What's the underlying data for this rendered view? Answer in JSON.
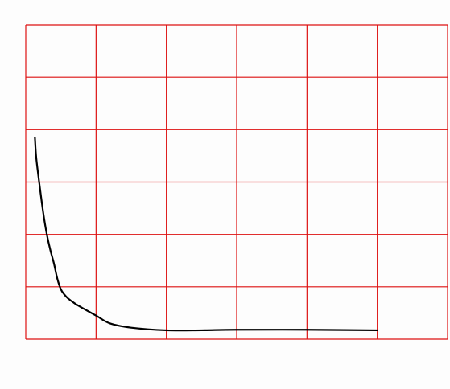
{
  "chart_data": {
    "type": "line",
    "title": "",
    "xlabel": "",
    "ylabel": "",
    "xlim": [
      0,
      6
    ],
    "ylim": [
      0,
      6
    ],
    "grid": true,
    "grid_color": "#dd1111",
    "line_color": "#000000",
    "background_color": "#fdfdfd",
    "series": [
      {
        "x": [
          0.13,
          0.15,
          0.2,
          0.25,
          0.3,
          0.35,
          0.4,
          0.45,
          0.5,
          0.55,
          0.6,
          0.7,
          0.8,
          1.0,
          1.2,
          1.5,
          2.0,
          2.5,
          3.0,
          4.0,
          5.0
        ],
        "y": [
          3.85,
          3.45,
          2.9,
          2.4,
          2.0,
          1.7,
          1.45,
          1.15,
          0.95,
          0.85,
          0.78,
          0.68,
          0.6,
          0.45,
          0.3,
          0.22,
          0.17,
          0.17,
          0.18,
          0.18,
          0.17
        ]
      }
    ]
  }
}
